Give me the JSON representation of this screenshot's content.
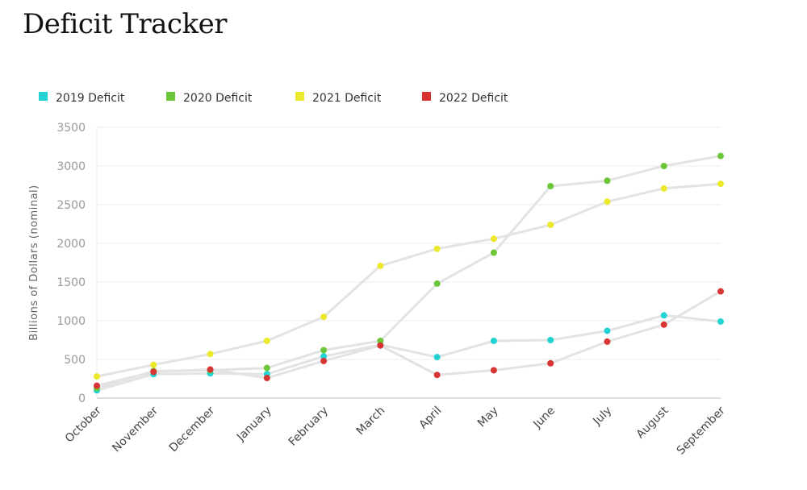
{
  "page": {
    "title": "Deficit Tracker"
  },
  "chart_data": {
    "type": "line",
    "ylabel": "Billions of Dollars (nominal)",
    "xlabel": "",
    "ylim": [
      0,
      3500
    ],
    "yticks": [
      0,
      500,
      1000,
      1500,
      2000,
      2500,
      3000,
      3500
    ],
    "grid": true,
    "legend_position": "top-left",
    "categories": [
      "October",
      "November",
      "December",
      "January",
      "February",
      "March",
      "April",
      "May",
      "June",
      "July",
      "August",
      "September"
    ],
    "series": [
      {
        "name": "2019 Deficit",
        "color": "#22d3d3",
        "values": [
          100,
          310,
          320,
          310,
          540,
          690,
          530,
          740,
          750,
          870,
          1070,
          990
        ]
      },
      {
        "name": "2020 Deficit",
        "color": "#6cc63a",
        "values": [
          130,
          350,
          360,
          390,
          620,
          740,
          1480,
          1880,
          2740,
          2810,
          3000,
          3130
        ]
      },
      {
        "name": "2021 Deficit",
        "color": "#ebe92a",
        "values": [
          280,
          430,
          570,
          740,
          1050,
          1710,
          1930,
          2060,
          2240,
          2540,
          2710,
          2770
        ]
      },
      {
        "name": "2022 Deficit",
        "color": "#d93434",
        "values": [
          160,
          340,
          370,
          260,
          480,
          680,
          300,
          360,
          450,
          730,
          950,
          1380
        ]
      }
    ]
  }
}
